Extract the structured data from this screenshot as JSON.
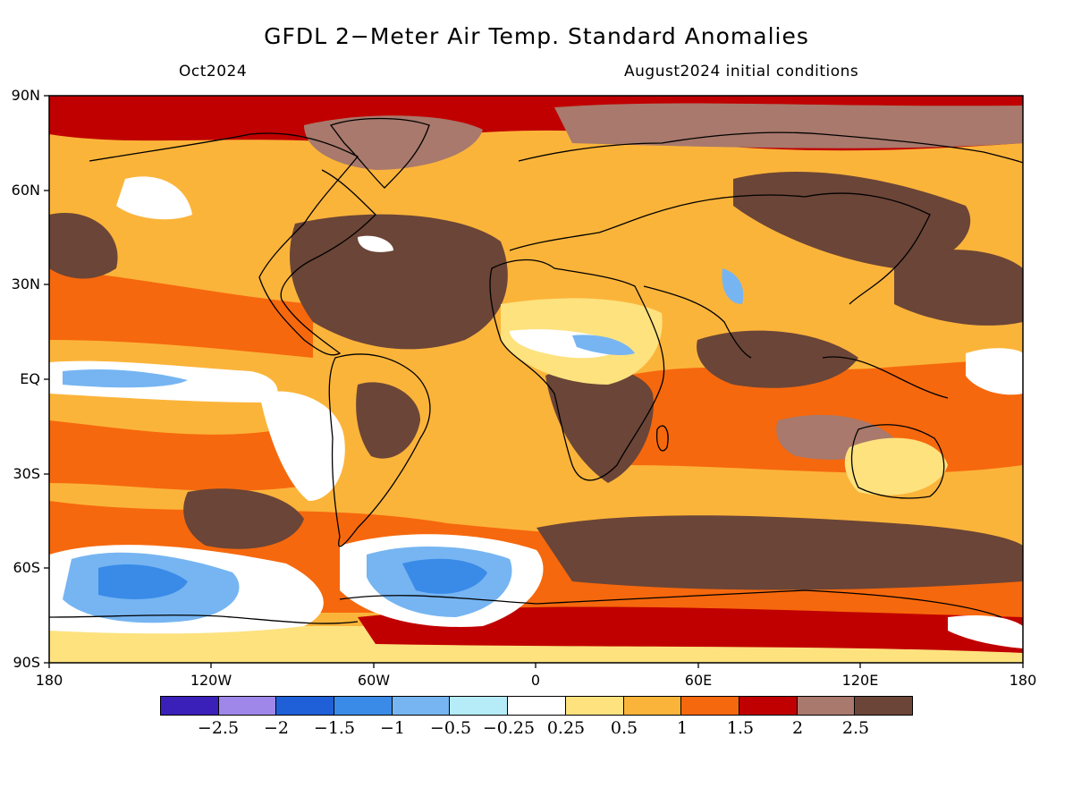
{
  "header": {
    "title": "GFDL 2−Meter Air Temp. Standard Anomalies",
    "valid_month": "Oct2024",
    "init_conditions": "August2024 initial conditions"
  },
  "axes": {
    "lat_labels": [
      "90N",
      "60N",
      "30N",
      "EQ",
      "30S",
      "60S",
      "90S"
    ],
    "lon_labels": [
      "180",
      "120W",
      "60W",
      "0",
      "60E",
      "120E",
      "180"
    ]
  },
  "colorbar": {
    "labels": [
      "−2.5",
      "−2",
      "−1.5",
      "−1",
      "−0.5",
      "−0.25",
      "0.25",
      "0.5",
      "1",
      "1.5",
      "2",
      "2.5"
    ],
    "colors": [
      "#3a1fb8",
      "#9f87ea",
      "#1f60d8",
      "#3a8be8",
      "#76b5f2",
      "#b6ecf8",
      "#ffffff",
      "#fde27e",
      "#fbb43a",
      "#f6680d",
      "#c00000",
      "#a8796c",
      "#6b4537"
    ]
  },
  "map_palette": {
    "ocean_base": "#fbb43a",
    "land_base": "#f6680d",
    "coast_color": "#000000"
  }
}
